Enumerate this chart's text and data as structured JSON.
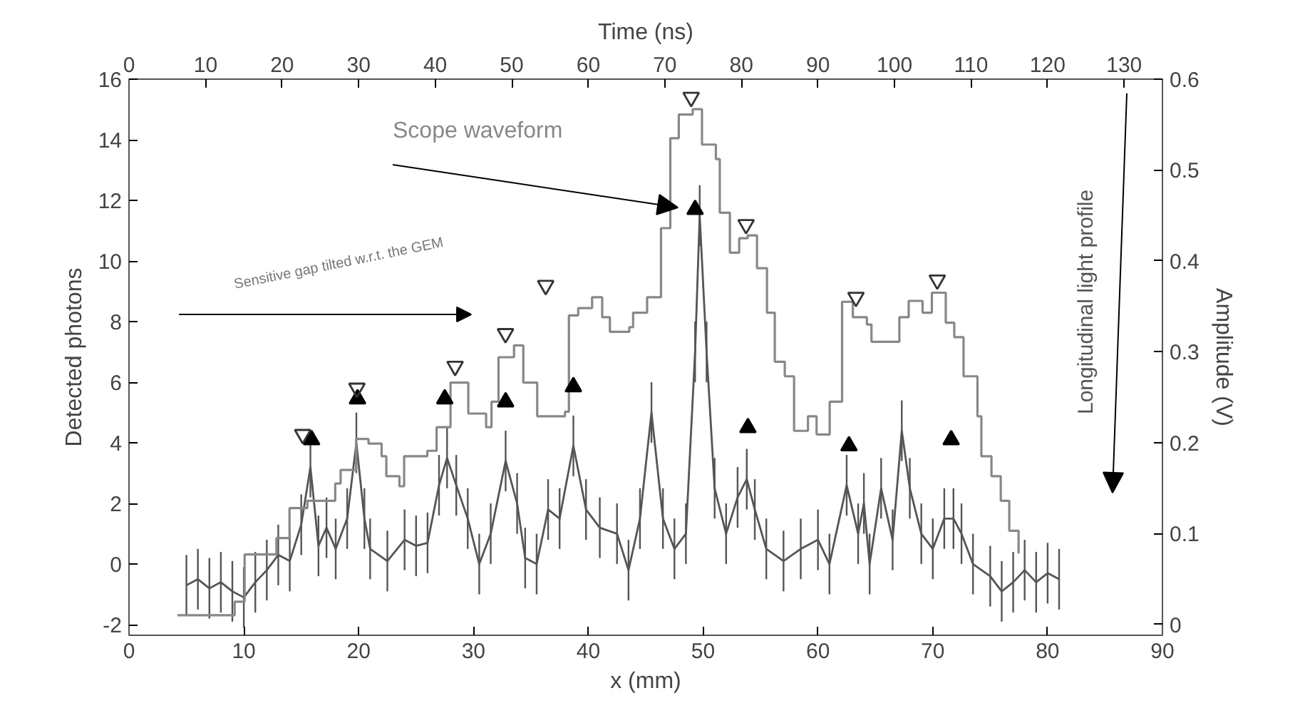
{
  "chart_data": {
    "type": "line",
    "xlabel": "x (mm)",
    "ylabel": "Detected photons",
    "y2label": "Amplitude (V)",
    "x2label": "Time (ns)",
    "xlim": [
      0,
      90
    ],
    "xticks": [
      0,
      10,
      20,
      30,
      40,
      50,
      60,
      70,
      80,
      90
    ],
    "ylim": [
      -2.35,
      16
    ],
    "yticks": [
      -2,
      0,
      2,
      4,
      6,
      8,
      10,
      12,
      14,
      16
    ],
    "x2lim": [
      0,
      135
    ],
    "x2ticks": [
      0,
      10,
      20,
      30,
      40,
      50,
      60,
      70,
      80,
      90,
      100,
      110,
      120,
      130
    ],
    "y2lim": [
      -0.012,
      0.6
    ],
    "y2ticks": [
      0,
      0.1,
      0.2,
      0.3,
      0.4,
      0.5,
      0.6
    ],
    "grid": false,
    "annotations": [
      "Sensitive gap tilted w.r.t. the GEM"
    ],
    "series": [
      {
        "name": "Longitudinal light profile",
        "color": "#555555",
        "x": [
          5,
          6,
          7,
          8,
          9,
          10,
          11,
          12,
          13,
          14,
          15,
          15.8,
          16.5,
          17.2,
          18,
          19,
          19.8,
          20.5,
          21,
          22.5,
          24,
          25,
          26,
          27,
          27.7,
          28.5,
          29.5,
          30.5,
          31.5,
          32.8,
          33.8,
          34.5,
          35.5,
          36.5,
          37.5,
          38.7,
          39.8,
          41,
          42.5,
          43.5,
          44.5,
          45.5,
          46.5,
          47.5,
          48.5,
          49.3,
          49.7,
          50.3,
          51,
          52,
          53,
          53.8,
          54.5,
          55.5,
          57,
          58.5,
          60,
          61,
          62.5,
          63.5,
          64,
          64.5,
          65.5,
          66.5,
          67.3,
          68,
          69,
          70,
          71,
          71.8,
          72.5,
          73.5,
          75,
          76,
          77,
          78,
          79,
          80,
          81
        ],
        "values": [
          -0.7,
          -0.5,
          -0.8,
          -0.6,
          -0.9,
          -1.1,
          -0.6,
          -0.2,
          0.3,
          0.1,
          1.3,
          3.2,
          0.6,
          1.2,
          0.5,
          1.5,
          4.0,
          1.5,
          0.5,
          0.1,
          0.8,
          0.6,
          0.7,
          2.6,
          3.5,
          2.6,
          1.5,
          0,
          1,
          3.4,
          2,
          0.2,
          0,
          1.8,
          1.5,
          3.9,
          1.8,
          1.2,
          1,
          -0.2,
          1.5,
          5,
          1.5,
          0.5,
          1,
          7,
          11.5,
          7,
          2.5,
          1,
          2.2,
          2.8,
          1.8,
          0.5,
          0.1,
          0.5,
          0.8,
          0,
          2.6,
          1,
          2,
          0,
          2.5,
          0.8,
          4.4,
          2.5,
          1,
          0.5,
          1.5,
          1.5,
          1,
          0,
          -0.4,
          -0.9,
          -0.6,
          -0.2,
          -0.6,
          -0.3,
          -0.5
        ],
        "errors": [
          1,
          1,
          1,
          1,
          1,
          1,
          1,
          1,
          1,
          1,
          1,
          1,
          1,
          1,
          1,
          1,
          1,
          1,
          1,
          1,
          1,
          1,
          1,
          1,
          1,
          1,
          1,
          1,
          1,
          1,
          1,
          1,
          1,
          1,
          1,
          1,
          1,
          1,
          1,
          1,
          1,
          1,
          1,
          1,
          1,
          1,
          1,
          1,
          1,
          1,
          1,
          1,
          1,
          1,
          1,
          1,
          1,
          1,
          1,
          1,
          1,
          1,
          1,
          1,
          1,
          1,
          1,
          1,
          1,
          1,
          1,
          1,
          1,
          1,
          1,
          1,
          1,
          1,
          1
        ]
      },
      {
        "name": "Scope waveform",
        "type": "step",
        "axis": "y2",
        "color": "#888888",
        "x": [
          4.21,
          9.2,
          10.07,
          12.84,
          13.98,
          15.53,
          17.96,
          18.43,
          19.78,
          20.86,
          22.0,
          22.41,
          23.55,
          23.96,
          25.98,
          26.79,
          28.0,
          29.55,
          31.1,
          31.57,
          32.18,
          33.53,
          34.34,
          35.55,
          37.97,
          38.31,
          39.12,
          40.33,
          41.21,
          41.88,
          43.57,
          43.9,
          45.12,
          46.33,
          47.14,
          47.88,
          49.09,
          49.9,
          51.11,
          51.45,
          52.33,
          53.14,
          53.88,
          54.69,
          55.56,
          56.24,
          57.11,
          57.92,
          59.13,
          59.88,
          61.02,
          62.1,
          63.04,
          64.26,
          64.66,
          66.34,
          67.09,
          67.9,
          69.11,
          69.92,
          71.13,
          71.87,
          72.68,
          73.89,
          74.23,
          75.11,
          75.92,
          76.66,
          77.47
        ],
        "values": [
          0.01,
          0.025,
          0.077,
          0.095,
          0.128,
          0.136,
          0.155,
          0.17,
          0.204,
          0.199,
          0.185,
          0.163,
          0.152,
          0.185,
          0.191,
          0.217,
          0.266,
          0.232,
          0.217,
          0.245,
          0.294,
          0.307,
          0.266,
          0.229,
          0.234,
          0.34,
          0.348,
          0.36,
          0.338,
          0.322,
          0.327,
          0.343,
          0.36,
          0.436,
          0.535,
          0.561,
          0.567,
          0.528,
          0.512,
          0.453,
          0.409,
          0.425,
          0.428,
          0.392,
          0.343,
          0.289,
          0.273,
          0.213,
          0.229,
          0.209,
          0.245,
          0.355,
          0.338,
          0.33,
          0.311,
          0.311,
          0.338,
          0.356,
          0.343,
          0.365,
          0.332,
          0.316,
          0.273,
          0.229,
          0.185,
          0.163,
          0.136,
          0.103,
          0.078
        ]
      },
      {
        "type": "scatter",
        "color": "#000000",
        "marker": "triangle",
        "x": [
          15.9,
          19.9,
          27.5,
          32.8,
          38.7,
          49.3,
          53.9,
          62.7,
          71.6
        ],
        "values": [
          4.1,
          5.45,
          5.45,
          5.35,
          5.85,
          11.7,
          4.5,
          3.9,
          4.1
        ]
      },
      {
        "type": "scatter",
        "axis": "y2",
        "color": "#333333",
        "marker": "triangle",
        "x": [
          15.13,
          19.85,
          28.4,
          32.79,
          36.29,
          48.96,
          53.74,
          63.31,
          70.39
        ],
        "values": [
          0.209,
          0.26,
          0.284,
          0.32,
          0.373,
          0.58,
          0.44,
          0.36,
          0.379
        ]
      }
    ]
  }
}
